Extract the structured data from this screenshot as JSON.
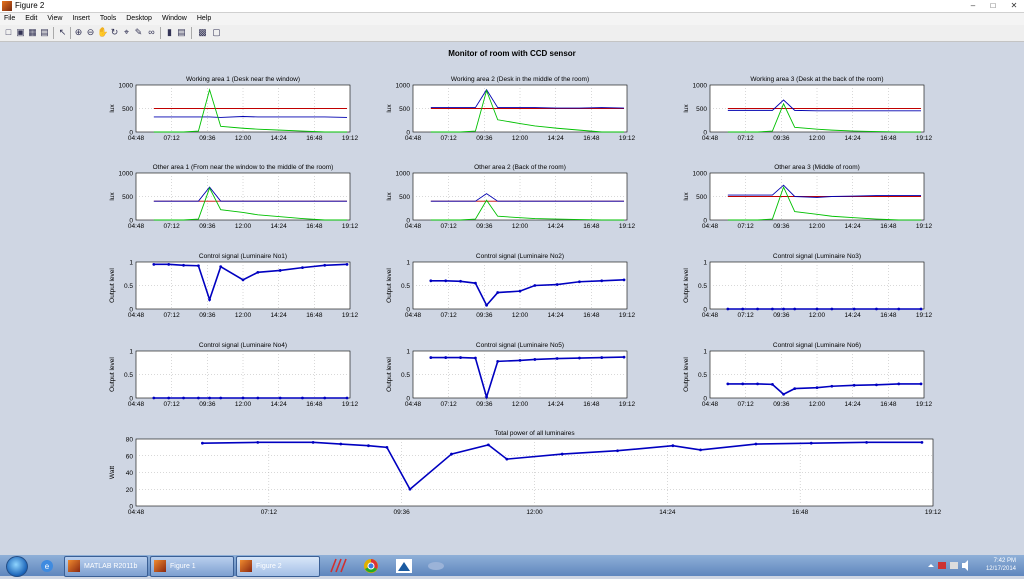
{
  "window": {
    "title": "Figure 2"
  },
  "menu": [
    "File",
    "Edit",
    "View",
    "Insert",
    "Tools",
    "Desktop",
    "Window",
    "Help"
  ],
  "toolbar_icons": [
    "new-figure-icon",
    "open-file-icon",
    "save-icon",
    "print-icon",
    "pointer-icon",
    "zoom-in-icon",
    "zoom-out-icon",
    "pan-icon",
    "rotate-icon",
    "data-cursor-icon",
    "brush-icon",
    "link-icon",
    "colorbar-icon",
    "legend-icon",
    "hide-plot-tools-icon",
    "show-plot-tools-icon"
  ],
  "figure": {
    "suptitle": "Monitor of room with CCD sensor"
  },
  "chart_data": [
    {
      "type": "line",
      "title": "Working area 1 (Desk near the window)",
      "ylabel": "lux",
      "ylim": [
        0,
        1000
      ],
      "yticks": [
        "0",
        "500",
        "1000"
      ],
      "xticks": [
        "04:48",
        "07:12",
        "09:36",
        "12:00",
        "14:24",
        "16:48",
        "19:12"
      ],
      "series": [
        {
          "color": "#c00000",
          "values": [
            500,
            500,
            500,
            500,
            500,
            500,
            500,
            500,
            500,
            500,
            500,
            500
          ]
        },
        {
          "color": "#0000b0",
          "values": [
            320,
            320,
            320,
            320,
            320,
            310,
            330,
            320,
            320,
            320,
            320,
            310
          ]
        },
        {
          "color": "#00c000",
          "values": [
            0,
            0,
            0,
            20,
            900,
            120,
            80,
            60,
            40,
            20,
            0,
            0
          ]
        }
      ],
      "x": [
        "06:00",
        "07:00",
        "08:00",
        "09:00",
        "09:45",
        "10:30",
        "12:00",
        "13:00",
        "14:30",
        "16:00",
        "17:30",
        "19:00"
      ]
    },
    {
      "type": "line",
      "title": "Working area 2 (Desk in the middle of the room)",
      "ylabel": "lux",
      "ylim": [
        0,
        1000
      ],
      "yticks": [
        "0",
        "500",
        "1000"
      ],
      "xticks": [
        "04:48",
        "07:12",
        "09:36",
        "12:00",
        "14:24",
        "16:48",
        "19:12"
      ],
      "series": [
        {
          "color": "#c00000",
          "values": [
            500,
            500,
            500,
            500,
            500,
            500,
            500,
            500,
            500,
            500,
            500,
            500
          ]
        },
        {
          "color": "#0000b0",
          "values": [
            520,
            520,
            520,
            520,
            900,
            520,
            520,
            520,
            510,
            510,
            520,
            510
          ]
        },
        {
          "color": "#00c000",
          "values": [
            0,
            0,
            0,
            20,
            880,
            260,
            180,
            130,
            80,
            40,
            0,
            0
          ]
        }
      ],
      "x": [
        "06:00",
        "07:00",
        "08:00",
        "09:00",
        "09:45",
        "10:30",
        "12:00",
        "13:00",
        "14:30",
        "16:00",
        "17:30",
        "19:00"
      ]
    },
    {
      "type": "line",
      "title": "Working area 3 (Desk at the back of the room)",
      "ylabel": "lux",
      "ylim": [
        0,
        1000
      ],
      "yticks": [
        "0",
        "500",
        "1000"
      ],
      "xticks": [
        "04:48",
        "07:12",
        "09:36",
        "12:00",
        "14:24",
        "16:48",
        "19:12"
      ],
      "series": [
        {
          "color": "#c00000",
          "values": [
            500,
            500,
            500,
            500,
            500,
            500,
            500,
            500,
            500,
            500,
            500,
            500
          ]
        },
        {
          "color": "#0000b0",
          "values": [
            460,
            460,
            460,
            460,
            680,
            460,
            450,
            450,
            450,
            450,
            450,
            450
          ]
        },
        {
          "color": "#00c000",
          "values": [
            0,
            0,
            0,
            20,
            600,
            100,
            60,
            40,
            20,
            10,
            0,
            0
          ]
        }
      ],
      "x": [
        "06:00",
        "07:00",
        "08:00",
        "09:00",
        "09:45",
        "10:30",
        "12:00",
        "13:00",
        "14:30",
        "16:00",
        "17:30",
        "19:00"
      ]
    },
    {
      "type": "line",
      "title": "Other area 1 (From near the window to the middle of the room)",
      "ylabel": "lux",
      "ylim": [
        0,
        1000
      ],
      "yticks": [
        "0",
        "500",
        "1000"
      ],
      "xticks": [
        "04:48",
        "07:12",
        "09:36",
        "12:00",
        "14:24",
        "16:48",
        "19:12"
      ],
      "series": [
        {
          "color": "#c00000",
          "values": [
            400,
            400,
            400,
            400,
            400,
            400,
            400,
            400,
            400,
            400,
            400,
            400
          ]
        },
        {
          "color": "#0000b0",
          "values": [
            400,
            400,
            400,
            400,
            700,
            400,
            400,
            400,
            400,
            400,
            400,
            400
          ]
        },
        {
          "color": "#00c000",
          "values": [
            0,
            0,
            0,
            20,
            680,
            220,
            160,
            110,
            70,
            30,
            0,
            0
          ]
        }
      ],
      "x": [
        "06:00",
        "07:00",
        "08:00",
        "09:00",
        "09:45",
        "10:30",
        "12:00",
        "13:00",
        "14:30",
        "16:00",
        "17:30",
        "19:00"
      ]
    },
    {
      "type": "line",
      "title": "Other area 2 (Back of the room)",
      "ylabel": "lux",
      "ylim": [
        0,
        1000
      ],
      "yticks": [
        "0",
        "500",
        "1000"
      ],
      "xticks": [
        "04:48",
        "07:12",
        "09:36",
        "12:00",
        "14:24",
        "16:48",
        "19:12"
      ],
      "series": [
        {
          "color": "#c00000",
          "values": [
            400,
            400,
            400,
            400,
            400,
            400,
            400,
            400,
            400,
            400,
            400,
            400
          ]
        },
        {
          "color": "#0000b0",
          "values": [
            400,
            400,
            400,
            400,
            560,
            400,
            400,
            400,
            400,
            400,
            400,
            400
          ]
        },
        {
          "color": "#00c000",
          "values": [
            0,
            0,
            0,
            20,
            420,
            80,
            50,
            30,
            20,
            10,
            0,
            0
          ]
        }
      ],
      "x": [
        "06:00",
        "07:00",
        "08:00",
        "09:00",
        "09:45",
        "10:30",
        "12:00",
        "13:00",
        "14:30",
        "16:00",
        "17:30",
        "19:00"
      ]
    },
    {
      "type": "line",
      "title": "Other area 3 (Middle of room)",
      "ylabel": "lux",
      "ylim": [
        0,
        1000
      ],
      "yticks": [
        "0",
        "500",
        "1000"
      ],
      "xticks": [
        "04:48",
        "07:12",
        "09:36",
        "12:00",
        "14:24",
        "16:48",
        "19:12"
      ],
      "series": [
        {
          "color": "#c00000",
          "values": [
            500,
            500,
            500,
            500,
            500,
            500,
            500,
            500,
            500,
            500,
            500,
            500
          ]
        },
        {
          "color": "#0000b0",
          "values": [
            530,
            530,
            530,
            530,
            740,
            500,
            480,
            500,
            510,
            520,
            520,
            520
          ]
        },
        {
          "color": "#00c000",
          "values": [
            0,
            0,
            0,
            20,
            700,
            180,
            120,
            80,
            50,
            20,
            0,
            0
          ]
        }
      ],
      "x": [
        "06:00",
        "07:00",
        "08:00",
        "09:00",
        "09:45",
        "10:30",
        "12:00",
        "13:00",
        "14:30",
        "16:00",
        "17:30",
        "19:00"
      ]
    },
    {
      "type": "scatter",
      "title": "Control signal (Luminaire No1)",
      "ylabel": "Output level",
      "ylim": [
        0,
        1
      ],
      "yticks": [
        "0",
        "0.5",
        "1"
      ],
      "xticks": [
        "04:48",
        "07:12",
        "09:36",
        "12:00",
        "14:24",
        "16:48",
        "19:12"
      ],
      "series": [
        {
          "color": "#0000c0",
          "values": [
            0.95,
            0.95,
            0.93,
            0.92,
            0.2,
            0.9,
            0.62,
            0.78,
            0.82,
            0.88,
            0.93,
            0.95
          ]
        }
      ],
      "x": [
        "06:00",
        "07:00",
        "08:00",
        "09:00",
        "09:45",
        "10:30",
        "12:00",
        "13:00",
        "14:30",
        "16:00",
        "17:30",
        "19:00"
      ]
    },
    {
      "type": "scatter",
      "title": "Control signal (Luminaire No2)",
      "ylabel": "Output level",
      "ylim": [
        0,
        1
      ],
      "yticks": [
        "0",
        "0.5",
        "1"
      ],
      "xticks": [
        "04:48",
        "07:12",
        "09:36",
        "12:00",
        "14:24",
        "16:48",
        "19:12"
      ],
      "series": [
        {
          "color": "#0000c0",
          "values": [
            0.6,
            0.6,
            0.59,
            0.55,
            0.08,
            0.35,
            0.38,
            0.5,
            0.52,
            0.58,
            0.6,
            0.62
          ]
        }
      ],
      "x": [
        "06:00",
        "07:00",
        "08:00",
        "09:00",
        "09:45",
        "10:30",
        "12:00",
        "13:00",
        "14:30",
        "16:00",
        "17:30",
        "19:00"
      ]
    },
    {
      "type": "scatter",
      "title": "Control signal (Luminaire No3)",
      "ylabel": "Output level",
      "ylim": [
        0,
        1
      ],
      "yticks": [
        "0",
        "0.5",
        "1"
      ],
      "xticks": [
        "04:48",
        "07:12",
        "09:36",
        "12:00",
        "14:24",
        "16:48",
        "19:12"
      ],
      "series": [
        {
          "color": "#0000c0",
          "values": [
            0,
            0,
            0,
            0,
            0,
            0,
            0,
            0,
            0,
            0,
            0,
            0
          ]
        }
      ],
      "x": [
        "06:00",
        "07:00",
        "08:00",
        "09:00",
        "09:45",
        "10:30",
        "12:00",
        "13:00",
        "14:30",
        "16:00",
        "17:30",
        "19:00"
      ]
    },
    {
      "type": "scatter",
      "title": "Control signal (Luminaire No4)",
      "ylabel": "Output level",
      "ylim": [
        0,
        1
      ],
      "yticks": [
        "0",
        "0.5",
        "1"
      ],
      "xticks": [
        "04:48",
        "07:12",
        "09:36",
        "12:00",
        "14:24",
        "16:48",
        "19:12"
      ],
      "series": [
        {
          "color": "#0000c0",
          "values": [
            0,
            0,
            0,
            0,
            0,
            0,
            0,
            0,
            0,
            0,
            0,
            0
          ]
        }
      ],
      "x": [
        "06:00",
        "07:00",
        "08:00",
        "09:00",
        "09:45",
        "10:30",
        "12:00",
        "13:00",
        "14:30",
        "16:00",
        "17:30",
        "19:00"
      ]
    },
    {
      "type": "scatter",
      "title": "Control signal (Luminaire No5)",
      "ylabel": "Output level",
      "ylim": [
        0,
        1
      ],
      "yticks": [
        "0",
        "0.5",
        "1"
      ],
      "xticks": [
        "04:48",
        "07:12",
        "09:36",
        "12:00",
        "14:24",
        "16:48",
        "19:12"
      ],
      "series": [
        {
          "color": "#0000c0",
          "values": [
            0.86,
            0.86,
            0.86,
            0.85,
            0.02,
            0.78,
            0.8,
            0.82,
            0.84,
            0.85,
            0.86,
            0.87
          ]
        }
      ],
      "x": [
        "06:00",
        "07:00",
        "08:00",
        "09:00",
        "09:45",
        "10:30",
        "12:00",
        "13:00",
        "14:30",
        "16:00",
        "17:30",
        "19:00"
      ]
    },
    {
      "type": "scatter",
      "title": "Control signal (Luminaire No6)",
      "ylabel": "Output level",
      "ylim": [
        0,
        1
      ],
      "yticks": [
        "0",
        "0.5",
        "1"
      ],
      "xticks": [
        "04:48",
        "07:12",
        "09:36",
        "12:00",
        "14:24",
        "16:48",
        "19:12"
      ],
      "series": [
        {
          "color": "#0000c0",
          "values": [
            0.3,
            0.3,
            0.3,
            0.29,
            0.08,
            0.2,
            0.22,
            0.25,
            0.27,
            0.28,
            0.3,
            0.3
          ]
        }
      ],
      "x": [
        "06:00",
        "07:00",
        "08:00",
        "09:00",
        "09:45",
        "10:30",
        "12:00",
        "13:00",
        "14:30",
        "16:00",
        "17:30",
        "19:00"
      ]
    },
    {
      "type": "scatter",
      "title": "Total power of all luminaires",
      "ylabel": "Watt",
      "ylim": [
        0,
        80
      ],
      "yticks": [
        "0",
        "20",
        "40",
        "60",
        "80"
      ],
      "xticks": [
        "04:48",
        "07:12",
        "09:36",
        "12:00",
        "14:24",
        "16:48",
        "19:12"
      ],
      "series": [
        {
          "color": "#0000c0",
          "values": [
            75,
            76,
            76,
            74,
            72,
            70,
            20,
            62,
            73,
            56,
            62,
            66,
            72,
            67,
            74,
            75,
            76,
            76
          ]
        }
      ],
      "x": [
        "06:00",
        "07:00",
        "08:00",
        "08:30",
        "09:00",
        "09:20",
        "09:45",
        "10:30",
        "11:10",
        "11:30",
        "12:30",
        "13:30",
        "14:30",
        "15:00",
        "16:00",
        "17:00",
        "18:00",
        "19:00"
      ]
    }
  ],
  "taskbar": {
    "tasks": [
      {
        "label": "MATLAB R2011b"
      },
      {
        "label": "Figure 1"
      },
      {
        "label": "Figure 2"
      }
    ],
    "time": "7:42 PM",
    "date": "12/17/2014"
  }
}
